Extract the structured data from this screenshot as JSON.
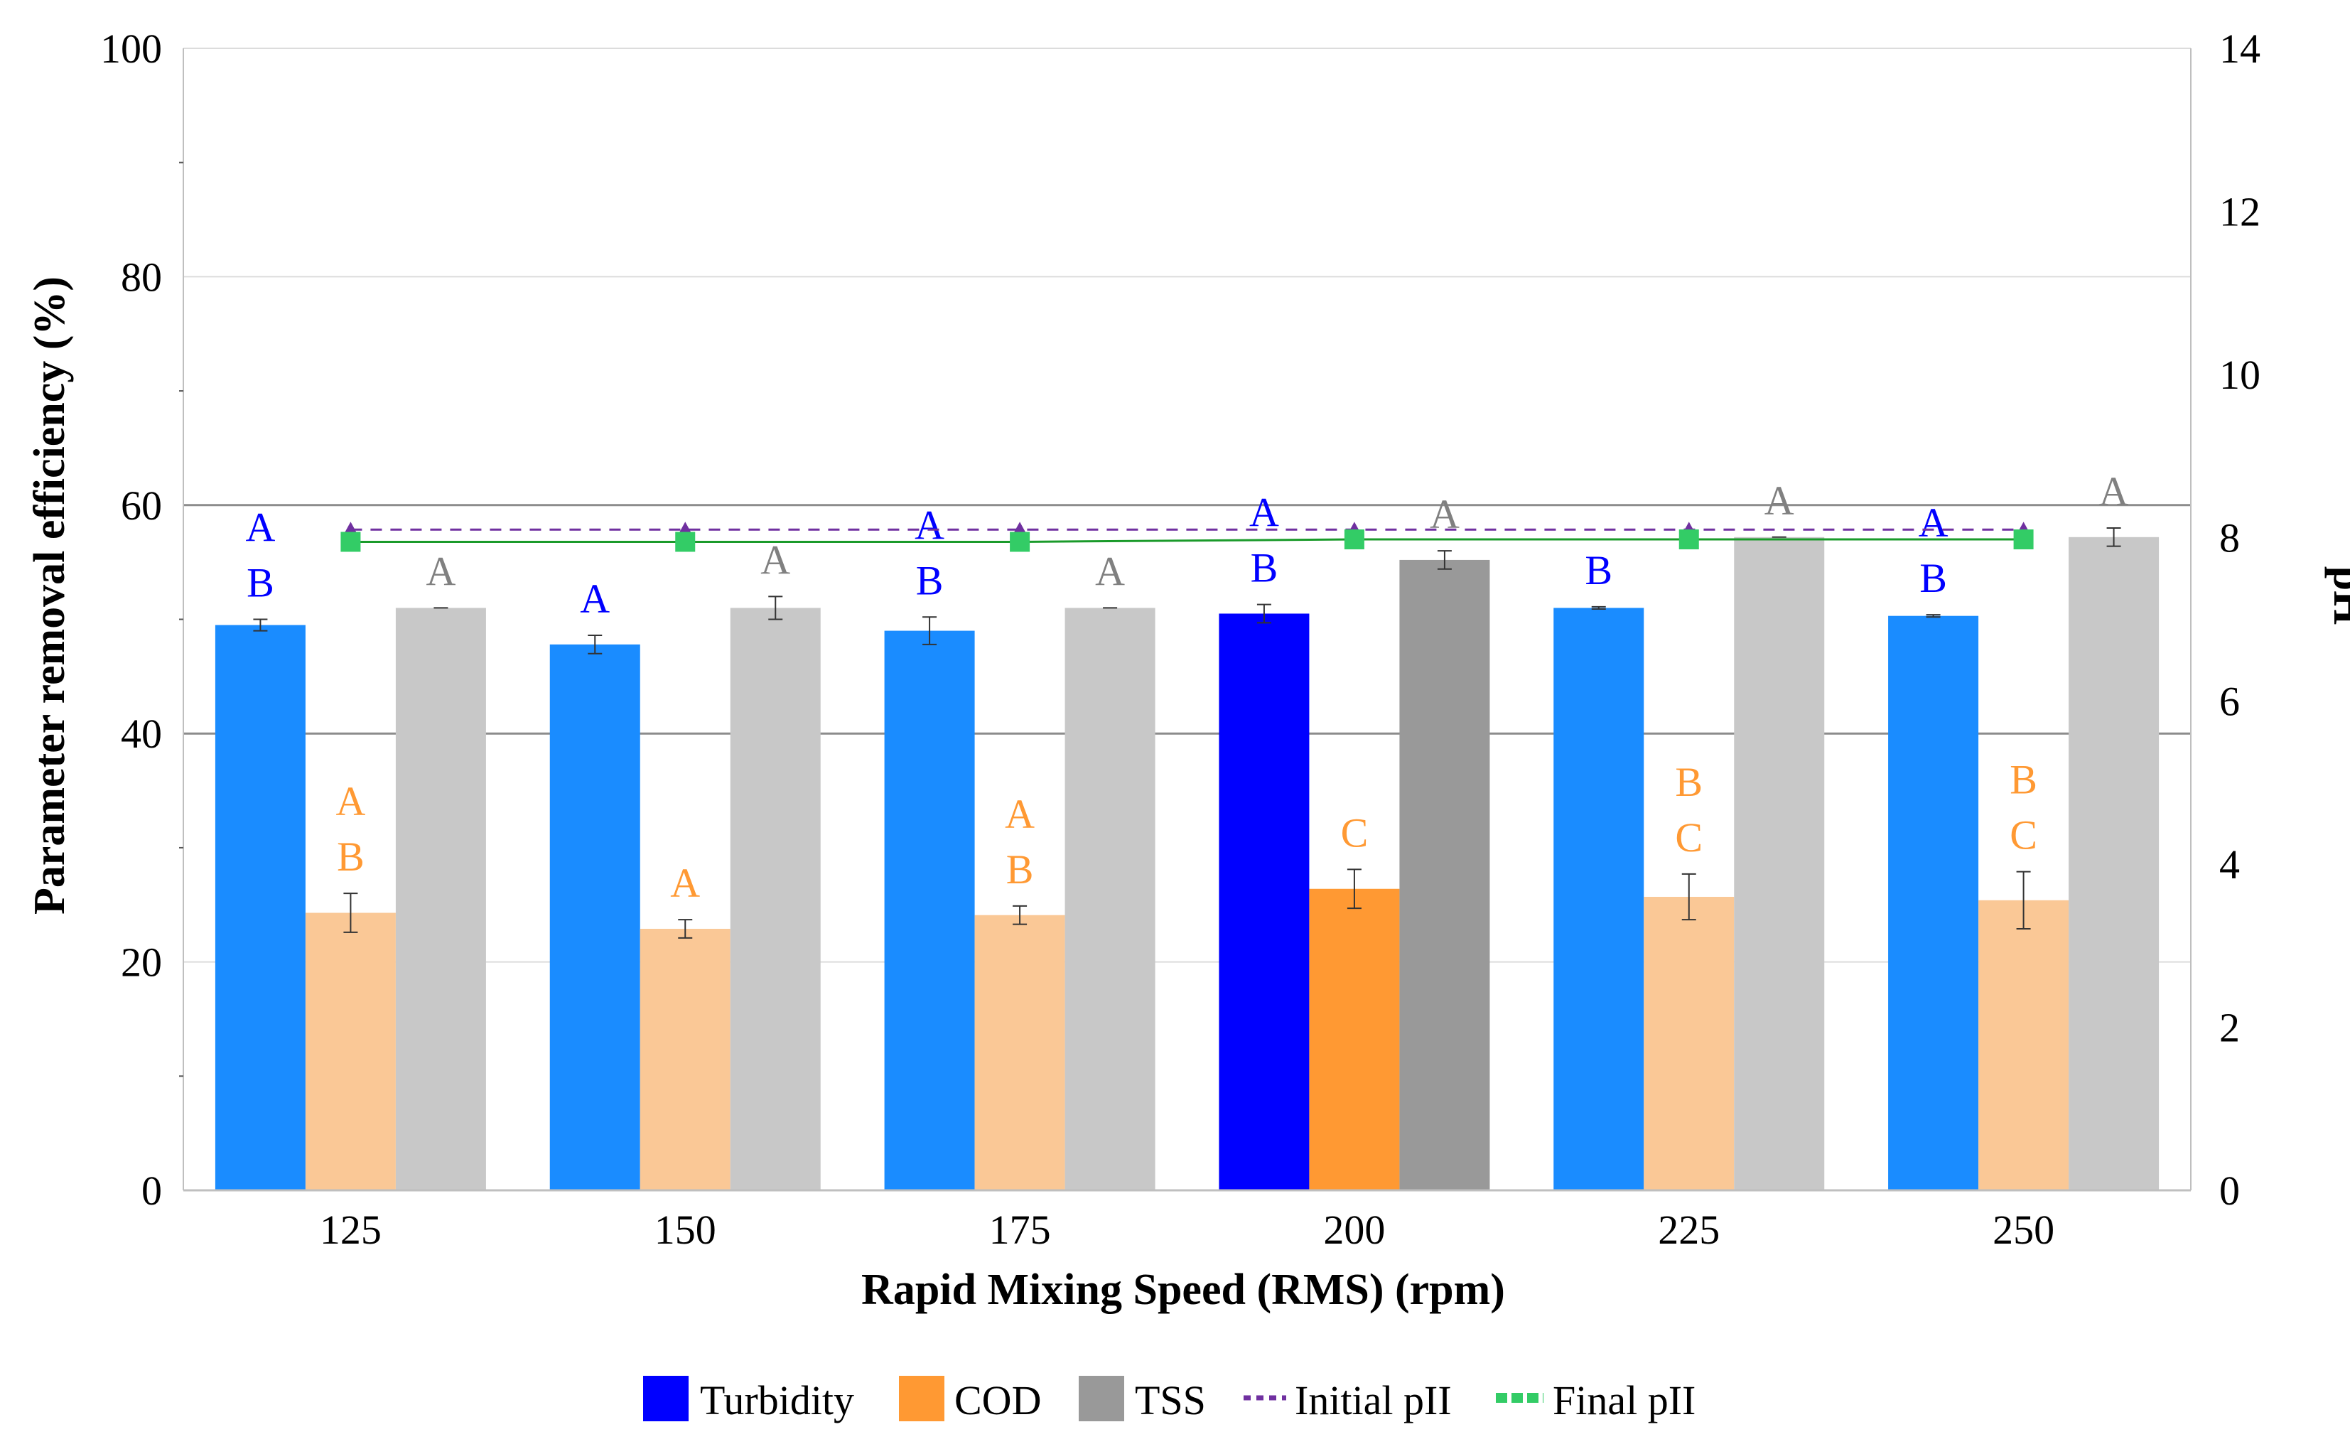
{
  "chart_data": {
    "type": "bar",
    "title": "",
    "xlabel": "Rapid Mixing Speed (RMS) (rpm)",
    "ylabel": "Parameter removal efficiency (%)",
    "y2label": "pH",
    "ylim": [
      0,
      100
    ],
    "y2lim": [
      0,
      14
    ],
    "yticks": [
      0,
      20,
      40,
      60,
      80,
      100
    ],
    "y2ticks": [
      0,
      2,
      4,
      6,
      8,
      10,
      12,
      14
    ],
    "categories": [
      "125",
      "150",
      "175",
      "200",
      "225",
      "250"
    ],
    "highlight_index": 3,
    "series": [
      {
        "name": "Turbidity",
        "values": [
          49.5,
          47.8,
          49.0,
          50.5,
          51.0,
          50.3
        ],
        "errors": [
          0.5,
          0.8,
          1.2,
          0.8,
          0.1,
          0.1
        ],
        "letters": [
          "A\nB",
          "A",
          "A\nB",
          "A\nB",
          "B",
          "A\nB"
        ],
        "color": "#1a8cff",
        "highlight_color": "#0000ff",
        "letter_color": "#0000ff"
      },
      {
        "name": "COD",
        "values": [
          24.3,
          22.9,
          24.1,
          26.4,
          25.7,
          25.4
        ],
        "errors": [
          1.7,
          0.8,
          0.8,
          1.7,
          2.0,
          2.5
        ],
        "letters": [
          "A\nB",
          "A",
          "A\nB",
          "C",
          "B\nC",
          "B\nC"
        ],
        "color": "#fac896",
        "highlight_color": "#ff9933",
        "letter_color": "#ff9933"
      },
      {
        "name": "TSS",
        "values": [
          51.0,
          51.0,
          51.0,
          55.2,
          57.2,
          57.2
        ],
        "errors": [
          0,
          1.0,
          0,
          0.8,
          0,
          0.8
        ],
        "letters": [
          "A",
          "A",
          "A",
          "A",
          "A",
          "A"
        ],
        "color": "#c8c8c8",
        "highlight_color": "#999999",
        "letter_color": "#808080"
      }
    ],
    "lines": [
      {
        "name": "Initial pH",
        "values": [
          8.1,
          8.1,
          8.1,
          8.1,
          8.1,
          8.1
        ],
        "axis": "y2",
        "color": "#7030a0",
        "style": "dashed"
      },
      {
        "name": "Final pH",
        "values": [
          7.95,
          7.95,
          7.95,
          7.98,
          7.98,
          7.98
        ],
        "axis": "y2",
        "color": "#33cc66",
        "style": "dotted"
      }
    ],
    "legend": {
      "position": "bottom",
      "labels": [
        "Turbidity",
        "COD",
        "TSS",
        "Initial pII",
        "Final pII"
      ]
    }
  }
}
